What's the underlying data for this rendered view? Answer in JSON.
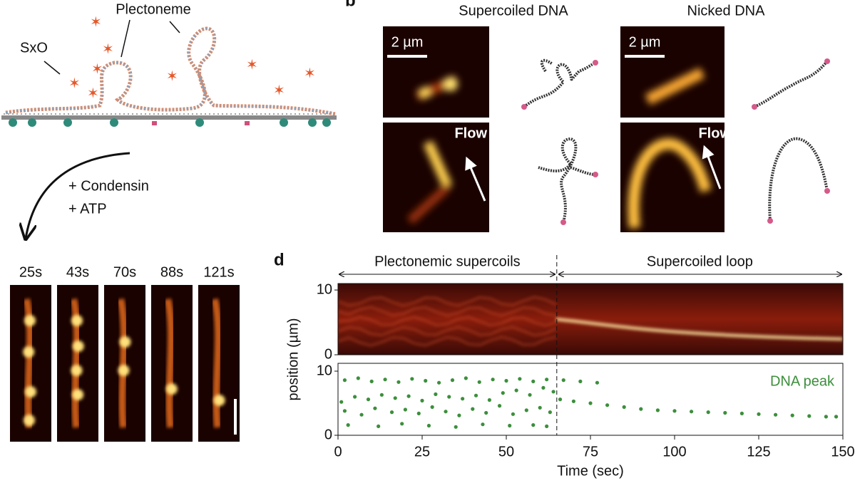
{
  "panel_a": {
    "plectoneme": "Plectoneme",
    "sxo": "SxO",
    "condensin": "+ Condensin",
    "atp": "+ ATP",
    "times": [
      "25s",
      "43s",
      "70s",
      "88s",
      "121s"
    ]
  },
  "panel_b": {
    "label": "b",
    "supercoiled": "Supercoiled DNA",
    "nicked": "Nicked DNA",
    "scale_bars": [
      "2 µm",
      "2 µm"
    ],
    "flow": [
      "Flow",
      "Flow"
    ]
  },
  "panel_d": {
    "label": "d",
    "left_span": "Plectonemic supercoils",
    "right_span": "Supercoiled loop"
  },
  "chart_data": [
    {
      "type": "kymograph",
      "ylim": [
        0,
        11
      ],
      "yticks": [
        0,
        10
      ]
    },
    {
      "type": "scatter",
      "ylabel": "position (µm)",
      "xlabel": "Time (sec)",
      "xlim": [
        0,
        150
      ],
      "xticks": [
        0,
        25,
        50,
        75,
        100,
        125,
        150
      ],
      "ylim": [
        0,
        11
      ],
      "yticks": [
        0,
        10
      ],
      "divider_x": 65,
      "legend": "upper right",
      "series": [
        {
          "name": "DNA peak",
          "color": "#3c8f3c",
          "x": [
            2,
            6,
            10,
            14,
            18,
            22,
            26,
            30,
            34,
            38,
            42,
            46,
            50,
            54,
            58,
            62,
            1,
            5,
            9,
            13,
            17,
            21,
            25,
            29,
            33,
            37,
            41,
            45,
            49,
            53,
            57,
            61,
            64,
            2,
            7,
            11,
            16,
            20,
            24,
            28,
            32,
            36,
            40,
            44,
            48,
            52,
            56,
            60,
            63,
            3,
            12,
            19,
            27,
            35,
            43,
            51,
            58,
            62,
            66,
            70,
            75,
            80,
            85,
            90,
            95,
            100,
            105,
            110,
            115,
            120,
            125,
            130,
            135,
            140,
            145,
            148,
            67,
            72,
            77
          ],
          "y": [
            8.6,
            8.9,
            8.4,
            8.7,
            8.3,
            8.8,
            8.5,
            8.2,
            8.6,
            8.9,
            8.3,
            8.7,
            8.5,
            8.8,
            8.4,
            8.7,
            5.2,
            6.0,
            5.6,
            6.3,
            5.8,
            6.1,
            5.4,
            6.4,
            6.0,
            5.7,
            6.2,
            5.5,
            6.6,
            7.0,
            6.3,
            7.4,
            6.8,
            3.8,
            3.2,
            4.2,
            3.6,
            4.0,
            3.4,
            4.4,
            3.7,
            3.1,
            4.1,
            3.5,
            4.6,
            3.3,
            3.9,
            4.3,
            3.6,
            1.6,
            1.4,
            1.8,
            1.5,
            1.3,
            1.7,
            1.5,
            1.6,
            1.4,
            5.6,
            5.3,
            5.0,
            4.7,
            4.4,
            4.1,
            3.9,
            3.8,
            3.7,
            3.6,
            3.5,
            3.4,
            3.3,
            3.2,
            3.1,
            3.0,
            2.9,
            2.9,
            8.6,
            8.4,
            8.2
          ]
        }
      ]
    }
  ]
}
